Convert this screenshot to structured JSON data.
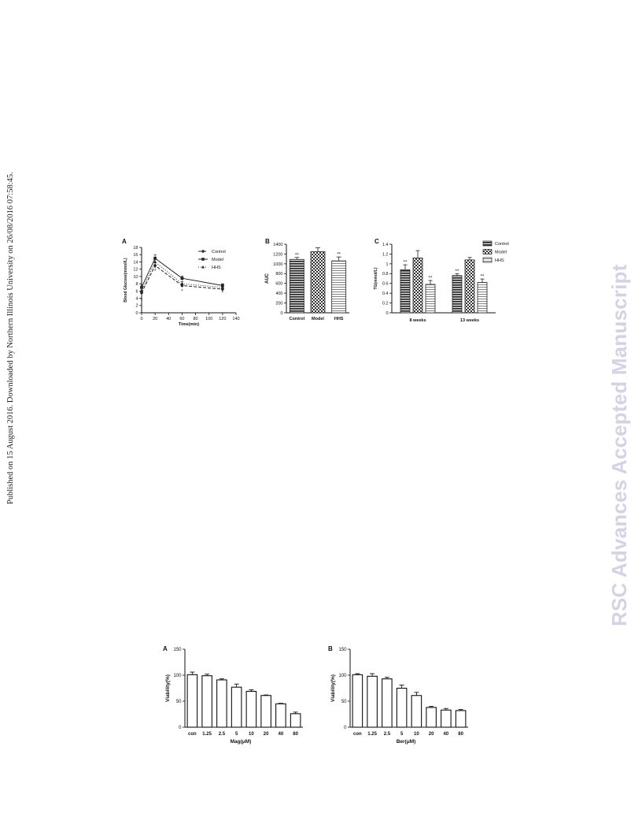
{
  "side_note": "Published on 15 August 2016. Downloaded by Northern Illinois University on 26/08/2016 07:58:45.",
  "watermark": "RSC Advances Accepted Manuscript",
  "chart_data": [
    {
      "id": "A",
      "panel": "A",
      "type": "line",
      "xlabel": "Time(min)",
      "ylabel": "Blood Glucose(mmol/L)",
      "xlim": [
        0,
        140
      ],
      "xticks": [
        0,
        20,
        40,
        60,
        80,
        100,
        120,
        140
      ],
      "ylim": [
        0,
        18
      ],
      "yticks": [
        0,
        2,
        4,
        6,
        8,
        10,
        12,
        14,
        16,
        18
      ],
      "x": [
        0,
        20,
        60,
        120
      ],
      "series": [
        {
          "name": "Control",
          "values": [
            5.5,
            13.0,
            7.5,
            6.5
          ],
          "errors": [
            0.8,
            0.8,
            0.5,
            0.6
          ],
          "marker": "circle",
          "dash": "4,2"
        },
        {
          "name": "Model",
          "values": [
            7.0,
            15.0,
            9.5,
            7.5
          ],
          "errors": [
            0.7,
            1.0,
            0.6,
            0.5
          ],
          "marker": "square",
          "dash": ""
        },
        {
          "name": "HHS",
          "values": [
            6.0,
            14.0,
            8.0,
            7.0
          ],
          "errors": [
            0.8,
            1.0,
            0.6,
            0.6
          ],
          "marker": "triangle",
          "dash": "1,2"
        }
      ],
      "annotations": [
        {
          "x": 0,
          "y": 3.5,
          "text": "*"
        },
        {
          "x": 20,
          "y": 11.5,
          "text": "*"
        },
        {
          "x": 60,
          "y": 6.0,
          "text": "*"
        },
        {
          "x": 120,
          "y": 5.5,
          "text": "*"
        }
      ],
      "legend": "top-right"
    },
    {
      "id": "B",
      "panel": "B",
      "type": "bar",
      "ylabel": "AUC",
      "ylim": [
        0,
        1400
      ],
      "yticks": [
        0,
        200,
        400,
        600,
        800,
        1000,
        1200,
        1400
      ],
      "categories": [
        "Control",
        "Model",
        "HHS"
      ],
      "values": [
        1090,
        1250,
        1060
      ],
      "errors": [
        40,
        80,
        80
      ],
      "patterns": [
        "stripes",
        "checker",
        "hlines"
      ],
      "annotations": [
        "**",
        "",
        "**"
      ]
    },
    {
      "id": "C",
      "panel": "C",
      "type": "bar",
      "ylabel": "TG(mmol/L)",
      "ylim": [
        0,
        1.4
      ],
      "yticks": [
        0,
        0.2,
        0.4,
        0.6,
        0.8,
        1.0,
        1.2,
        1.4
      ],
      "categories": [
        "8 weeks",
        "13 weeks"
      ],
      "series": [
        {
          "name": "Control",
          "values": [
            0.88,
            0.76
          ],
          "errors": [
            0.1,
            0.04
          ],
          "pattern": "stripes",
          "annotations": [
            "**",
            "**"
          ]
        },
        {
          "name": "Model",
          "values": [
            1.12,
            1.08
          ],
          "errors": [
            0.15,
            0.05
          ],
          "pattern": "checker",
          "annotations": [
            "",
            ""
          ]
        },
        {
          "name": "HHS",
          "values": [
            0.58,
            0.62
          ],
          "errors": [
            0.08,
            0.07
          ],
          "pattern": "hlines",
          "annotations": [
            "**",
            "**"
          ]
        }
      ],
      "legend": "top-right"
    },
    {
      "id": "D",
      "panel": "A",
      "type": "bar",
      "xlabel": "Mag(μM)",
      "ylabel": "Viability(%)",
      "ylim": [
        0,
        150
      ],
      "yticks": [
        0,
        50,
        100,
        150
      ],
      "categories": [
        "con",
        "1.25",
        "2.5",
        "5",
        "10",
        "20",
        "40",
        "80"
      ],
      "values": [
        101,
        99,
        91,
        77,
        69,
        61,
        45,
        26
      ],
      "errors": [
        5,
        3,
        2,
        6,
        3,
        1,
        1,
        3
      ]
    },
    {
      "id": "E",
      "panel": "B",
      "type": "bar",
      "xlabel": "Ber(μM)",
      "ylabel": "Viability(%)",
      "ylim": [
        0,
        150
      ],
      "yticks": [
        0,
        50,
        100,
        150
      ],
      "categories": [
        "con",
        "1.25",
        "2.5",
        "5",
        "10",
        "20",
        "40",
        "80"
      ],
      "values": [
        101,
        98,
        93,
        75,
        61,
        38,
        33,
        32
      ],
      "errors": [
        2,
        5,
        3,
        6,
        6,
        2,
        3,
        2
      ]
    }
  ]
}
